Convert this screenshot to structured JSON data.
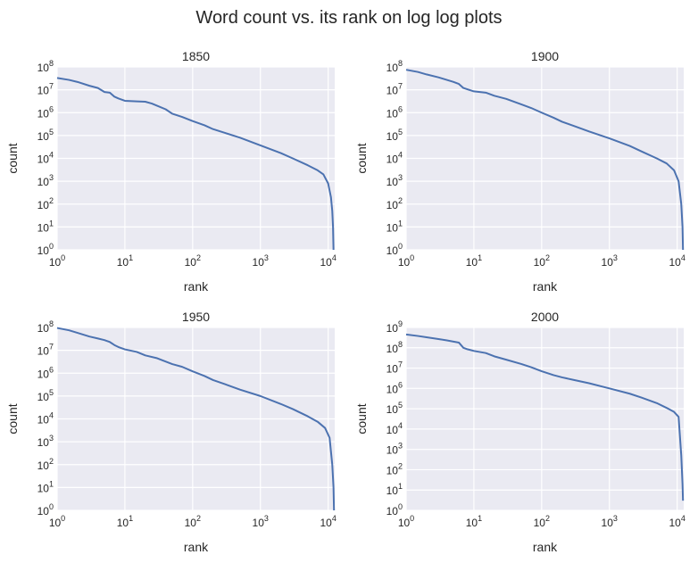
{
  "suptitle": "Word count vs. its rank on log log plots",
  "colors": {
    "background": "#eaeaf2",
    "grid": "#ffffff",
    "line": "#4c72b0",
    "text": "#262626"
  },
  "chart_data": [
    {
      "type": "line",
      "title": "1850",
      "xlabel": "rank",
      "ylabel": "count",
      "xscale": "log",
      "yscale": "log",
      "xlim": [
        1,
        12500
      ],
      "ylim": [
        1,
        100000000
      ],
      "xticks": [
        1,
        10,
        100,
        1000,
        10000
      ],
      "yticks": [
        1,
        10,
        100,
        1000,
        10000,
        100000,
        1000000,
        10000000,
        100000000
      ],
      "grid": true,
      "series": [
        {
          "x": [
            1,
            1.5,
            2,
            3,
            4,
            5,
            6,
            7,
            8,
            10,
            15,
            20,
            25,
            30,
            40,
            50,
            70,
            100,
            150,
            200,
            300,
            500,
            1000,
            2000,
            3000,
            5000,
            7000,
            8500,
            10000,
            11000,
            11500,
            11800,
            12000
          ],
          "y": [
            33000000,
            27000000,
            22000000,
            15000000,
            12000000,
            8000000,
            7500000,
            5000000,
            4200000,
            3300000,
            3100000,
            3000000,
            2500000,
            2000000,
            1400000,
            900000,
            650000,
            430000,
            280000,
            190000,
            130000,
            80000,
            37000,
            17000,
            10000,
            5000,
            3000,
            2000,
            800,
            200,
            50,
            10,
            1
          ]
        }
      ]
    },
    {
      "type": "line",
      "title": "1900",
      "xlabel": "rank",
      "ylabel": "count",
      "xscale": "log",
      "yscale": "log",
      "xlim": [
        1,
        12500
      ],
      "ylim": [
        1,
        100000000
      ],
      "xticks": [
        1,
        10,
        100,
        1000,
        10000
      ],
      "yticks": [
        1,
        10,
        100,
        1000,
        10000,
        100000,
        1000000,
        10000000,
        100000000
      ],
      "grid": true,
      "series": [
        {
          "x": [
            1,
            1.5,
            2,
            3,
            4,
            5,
            6,
            7,
            8,
            10,
            15,
            20,
            30,
            50,
            70,
            100,
            150,
            200,
            300,
            500,
            1000,
            2000,
            3000,
            5000,
            7000,
            9000,
            10500,
            11500,
            12000,
            12200
          ],
          "y": [
            75000000,
            60000000,
            47000000,
            35000000,
            27000000,
            22000000,
            18000000,
            12000000,
            10500000,
            8500000,
            7500000,
            5500000,
            4000000,
            2300000,
            1600000,
            1000000,
            600000,
            400000,
            260000,
            150000,
            75000,
            35000,
            20000,
            10000,
            6000,
            3000,
            1000,
            100,
            10,
            1
          ]
        }
      ]
    },
    {
      "type": "line",
      "title": "1950",
      "xlabel": "rank",
      "ylabel": "count",
      "xscale": "log",
      "yscale": "log",
      "xlim": [
        1,
        12500
      ],
      "ylim": [
        1,
        100000000
      ],
      "xticks": [
        1,
        10,
        100,
        1000,
        10000
      ],
      "yticks": [
        1,
        10,
        100,
        1000,
        10000,
        100000,
        1000000,
        10000000,
        100000000
      ],
      "grid": true,
      "series": [
        {
          "x": [
            1,
            1.5,
            2,
            3,
            4,
            5,
            6,
            7,
            8,
            10,
            15,
            20,
            30,
            50,
            70,
            100,
            150,
            200,
            300,
            500,
            1000,
            2000,
            3000,
            5000,
            7000,
            9000,
            10500,
            11500,
            12000,
            12200
          ],
          "y": [
            95000000,
            75000000,
            58000000,
            40000000,
            33000000,
            28000000,
            23000000,
            17000000,
            14000000,
            11000000,
            8500000,
            6000000,
            4500000,
            2500000,
            1900000,
            1200000,
            750000,
            500000,
            330000,
            190000,
            100000,
            45000,
            27000,
            13000,
            7500,
            4000,
            1500,
            100,
            10,
            1
          ]
        }
      ]
    },
    {
      "type": "line",
      "title": "2000",
      "xlabel": "rank",
      "ylabel": "count",
      "xscale": "log",
      "yscale": "log",
      "xlim": [
        1,
        12500
      ],
      "ylim": [
        1,
        1000000000
      ],
      "xticks": [
        1,
        10,
        100,
        1000,
        10000
      ],
      "yticks": [
        1,
        10,
        100,
        1000,
        10000,
        100000,
        1000000,
        10000000,
        100000000,
        1000000000
      ],
      "grid": true,
      "series": [
        {
          "x": [
            1,
            1.5,
            2,
            3,
            4,
            5,
            6,
            7,
            8,
            10,
            15,
            20,
            30,
            50,
            70,
            100,
            150,
            200,
            300,
            500,
            1000,
            2000,
            3000,
            5000,
            7000,
            9000,
            10500,
            11500,
            12000,
            12200
          ],
          "y": [
            450000000,
            380000000,
            330000000,
            270000000,
            230000000,
            200000000,
            180000000,
            100000000,
            85000000,
            70000000,
            55000000,
            38000000,
            26000000,
            16000000,
            11000000,
            7000000,
            4500000,
            3500000,
            2600000,
            1800000,
            1000000,
            550000,
            350000,
            190000,
            110000,
            70000,
            40000,
            500,
            20,
            3
          ]
        }
      ]
    }
  ]
}
